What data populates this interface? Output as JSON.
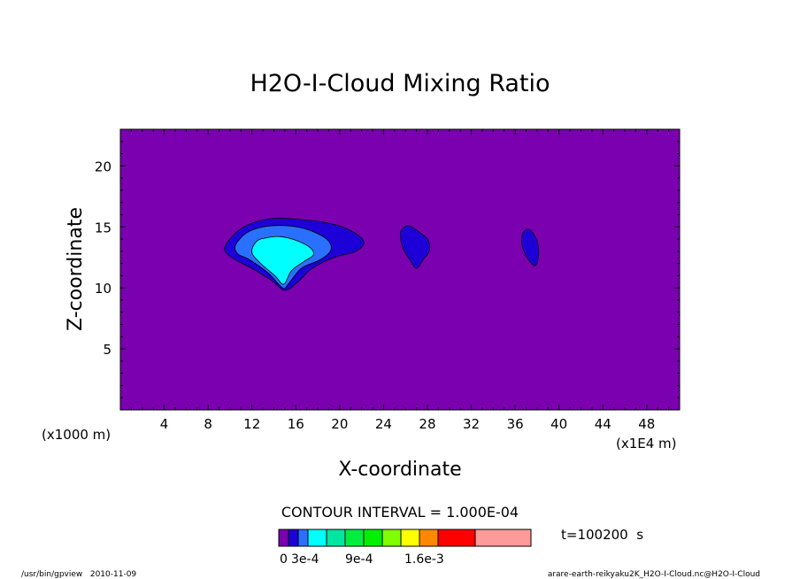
{
  "chart_data": {
    "type": "contour",
    "title": "H2O-I-Cloud Mixing Ratio",
    "xlabel": "X-coordinate",
    "ylabel": "Z-coordinate",
    "x_unit": "(x1E4 m)",
    "y_unit": "(x1000 m)",
    "xlim": [
      0,
      51
    ],
    "ylim": [
      0,
      23
    ],
    "x_ticks": [
      4,
      8,
      12,
      16,
      20,
      24,
      28,
      32,
      36,
      40,
      44,
      48
    ],
    "y_ticks": [
      5,
      10,
      15,
      20
    ],
    "contour_interval_text": "CONTOUR INTERVAL = 1.000E-04",
    "time_text": "t=100200  s",
    "colorbar": {
      "colors": [
        "#7a00b0",
        "#1d00d8",
        "#2a70ff",
        "#00ffff",
        "#00e5a0",
        "#00ee40",
        "#00f000",
        "#80ff00",
        "#ffff00",
        "#ff8800",
        "#ff0000",
        "#ff9a9a"
      ],
      "labels": [
        {
          "text": "0",
          "level": 0
        },
        {
          "text": "3e-4",
          "level": 0.0003
        },
        {
          "text": "9e-4",
          "level": 0.0009
        },
        {
          "text": "1.6e-3",
          "level": 0.0016
        }
      ]
    },
    "regions": [
      {
        "level": "1e-4",
        "color": "#1d00d8",
        "outline": [
          [
            9.5,
            13.2
          ],
          [
            10.5,
            14.5
          ],
          [
            12,
            15.3
          ],
          [
            14,
            15.7
          ],
          [
            16.5,
            15.6
          ],
          [
            19,
            15.3
          ],
          [
            21,
            14.7
          ],
          [
            22.2,
            13.8
          ],
          [
            21.5,
            13.0
          ],
          [
            19.5,
            12.5
          ],
          [
            17.5,
            11.6
          ],
          [
            16.2,
            10.5
          ],
          [
            15.0,
            9.8
          ],
          [
            13.8,
            10.6
          ],
          [
            12,
            11.6
          ],
          [
            10.3,
            12.4
          ]
        ]
      },
      {
        "level": "2e-4",
        "color": "#2a70ff",
        "outline": [
          [
            10.5,
            13.5
          ],
          [
            11.5,
            14.5
          ],
          [
            13,
            15.0
          ],
          [
            15,
            15.1
          ],
          [
            17,
            14.8
          ],
          [
            18.8,
            14.0
          ],
          [
            19.2,
            13.1
          ],
          [
            18.2,
            12.3
          ],
          [
            16.5,
            11.6
          ],
          [
            15.3,
            10.3
          ],
          [
            14.8,
            10.0
          ],
          [
            13.5,
            11.2
          ],
          [
            11.8,
            12.3
          ],
          [
            10.7,
            12.8
          ]
        ]
      },
      {
        "level": "3e-4",
        "color": "#00ffff",
        "outline": [
          [
            12.0,
            12.9
          ],
          [
            12.4,
            13.8
          ],
          [
            13.3,
            14.1
          ],
          [
            14.6,
            14.2
          ],
          [
            16.0,
            13.9
          ],
          [
            17.3,
            13.3
          ],
          [
            17.6,
            12.7
          ],
          [
            16.8,
            12.2
          ],
          [
            15.6,
            11.4
          ],
          [
            14.9,
            10.3
          ],
          [
            14.1,
            11.0
          ],
          [
            12.8,
            12.0
          ]
        ]
      },
      {
        "level": "1e-4",
        "color": "#1d00d8",
        "outline": [
          [
            25.6,
            14.7
          ],
          [
            26.3,
            15.1
          ],
          [
            27.2,
            14.6
          ],
          [
            28.0,
            14.0
          ],
          [
            28.2,
            13.1
          ],
          [
            27.6,
            12.3
          ],
          [
            27.0,
            11.6
          ],
          [
            26.4,
            12.3
          ],
          [
            25.9,
            13.0
          ],
          [
            25.6,
            13.8
          ]
        ]
      },
      {
        "level": "1e-4",
        "color": "#1d00d8",
        "outline": [
          [
            36.7,
            14.5
          ],
          [
            37.2,
            14.8
          ],
          [
            37.7,
            14.4
          ],
          [
            38.1,
            13.5
          ],
          [
            38.1,
            12.4
          ],
          [
            37.8,
            11.8
          ],
          [
            37.3,
            12.2
          ],
          [
            36.9,
            12.8
          ],
          [
            36.6,
            13.6
          ]
        ]
      }
    ]
  },
  "footer": {
    "left": "/usr/bin/gpview   2010-11-09",
    "right": "arare-earth-reikyaku2K_H2O-I-Cloud.nc@H2O-I-Cloud"
  }
}
